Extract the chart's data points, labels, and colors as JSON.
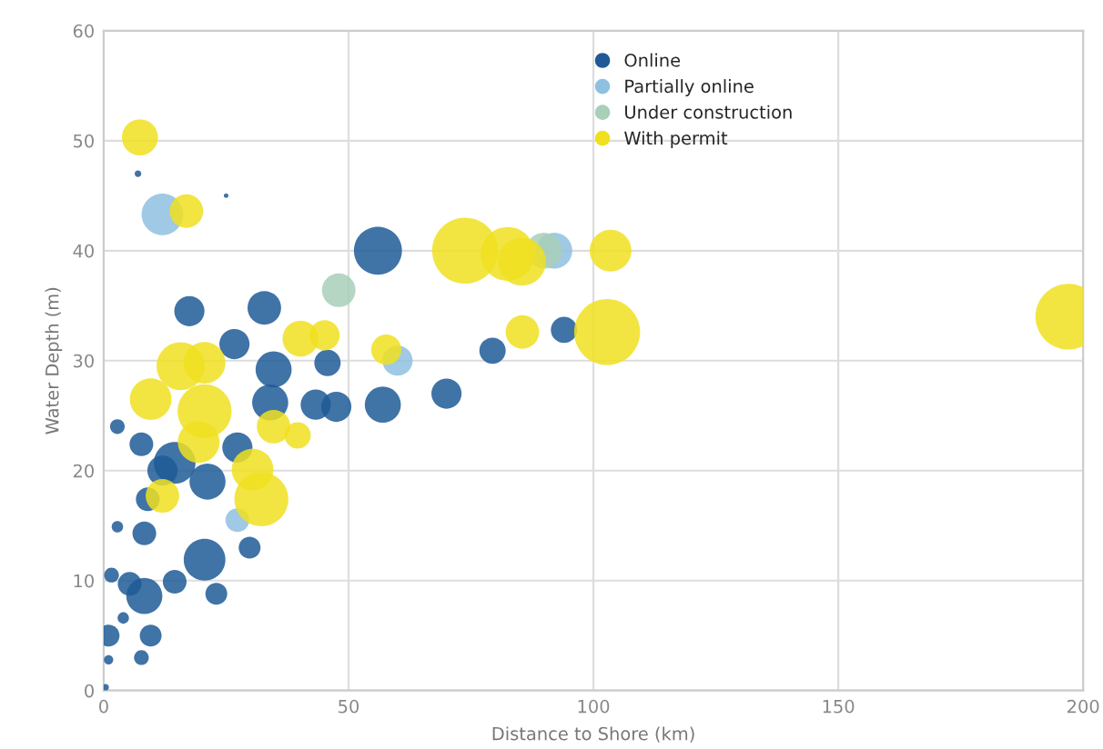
{
  "chart_data": {
    "type": "bubble",
    "xlabel": "Distance to Shore (km)",
    "ylabel": "Water Depth (m)",
    "xlim": [
      0,
      200
    ],
    "ylim": [
      0,
      60
    ],
    "xticks": [
      0,
      50,
      100,
      150,
      200
    ],
    "yticks": [
      0,
      10,
      20,
      30,
      40,
      50,
      60
    ],
    "grid": true,
    "legend": "top right",
    "series": [
      {
        "name": "Online",
        "color": "#1f5a96",
        "x": [
          7,
          25,
          17.5,
          32.8,
          26.7,
          34.7,
          45.7,
          34,
          43.3,
          47.5,
          2.8,
          7.7,
          14.5,
          12,
          21.2,
          27.3,
          9,
          8.3,
          2.8,
          20.6,
          29.8,
          23,
          1.6,
          8.3,
          5.3,
          14.5,
          9.6,
          1,
          4,
          7.7,
          1,
          0.4,
          56,
          57,
          70,
          79.4,
          94
        ],
        "values": [
          47,
          45,
          34.5,
          34.8,
          31.5,
          29.2,
          29.8,
          26.2,
          26,
          25.8,
          24,
          22.4,
          20.7,
          20,
          19,
          22.1,
          17.4,
          14.3,
          14.9,
          11.9,
          13,
          8.8,
          10.5,
          8.6,
          9.7,
          9.9,
          5,
          5,
          6.6,
          3,
          2.8,
          0.3,
          40,
          26,
          27,
          30.9,
          32.8
        ],
        "sizes": [
          0.01,
          0.005,
          0.21,
          0.26,
          0.21,
          0.3,
          0.16,
          0.3,
          0.21,
          0.21,
          0.05,
          0.13,
          0.4,
          0.21,
          0.3,
          0.21,
          0.13,
          0.13,
          0.03,
          0.4,
          0.11,
          0.11,
          0.05,
          0.3,
          0.13,
          0.13,
          0.11,
          0.11,
          0.03,
          0.05,
          0.02,
          0.01,
          0.53,
          0.3,
          0.21,
          0.16,
          0.16
        ]
      },
      {
        "name": "Partially online",
        "color": "#8fc0e0",
        "x": [
          12,
          60,
          92,
          27.3
        ],
        "values": [
          43.3,
          30,
          40,
          15.5
        ],
        "sizes": [
          0.4,
          0.21,
          0.3,
          0.13
        ]
      },
      {
        "name": "Under construction",
        "color": "#a8cfb8",
        "x": [
          48,
          89.9
        ],
        "values": [
          36.4,
          40
        ],
        "sizes": [
          0.26,
          0.3
        ]
      },
      {
        "name": "With permit",
        "color": "#f0e020",
        "x": [
          7.4,
          16.9,
          15.7,
          20.6,
          9.6,
          20.6,
          19.4,
          12,
          30.4,
          32.2,
          34.7,
          39.6,
          40.2,
          45.1,
          73.8,
          82.5,
          85.4,
          103.5,
          102.8,
          85.5,
          57.7,
          197
        ],
        "values": [
          50.3,
          43.6,
          29.5,
          29.8,
          26.5,
          25.4,
          22.6,
          17.7,
          20.1,
          17.4,
          24,
          23.2,
          32,
          32.3,
          40,
          39.7,
          39,
          40,
          32.6,
          32.6,
          31,
          34
        ],
        "sizes": [
          0.3,
          0.26,
          0.53,
          0.4,
          0.4,
          0.67,
          0.4,
          0.26,
          0.4,
          0.67,
          0.26,
          0.16,
          0.3,
          0.21,
          1,
          0.67,
          0.53,
          0.4,
          1,
          0.26,
          0.21,
          1
        ]
      }
    ]
  }
}
